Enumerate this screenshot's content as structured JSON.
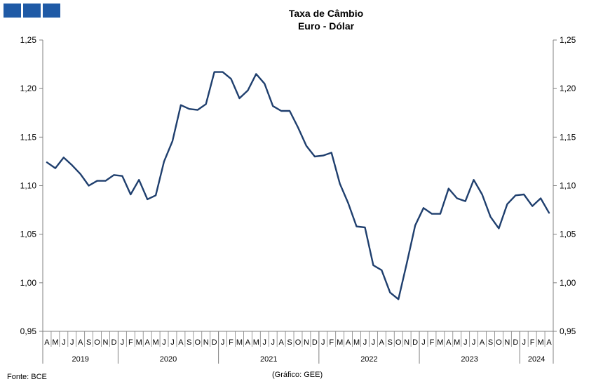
{
  "chart_data": {
    "type": "line",
    "title": "Taxa de Câmbio",
    "subtitle": "Euro - Dólar",
    "ylim": [
      0.95,
      1.25
    ],
    "y_ticks": [
      "0,95",
      "1,00",
      "1,05",
      "1,10",
      "1,15",
      "1,20",
      "1,25"
    ],
    "y_tick_values": [
      0.95,
      1.0,
      1.05,
      1.1,
      1.15,
      1.2,
      1.25
    ],
    "grid": false,
    "x": [
      "2019-04",
      "2019-05",
      "2019-06",
      "2019-07",
      "2019-08",
      "2019-09",
      "2019-10",
      "2019-11",
      "2019-12",
      "2020-01",
      "2020-02",
      "2020-03",
      "2020-04",
      "2020-05",
      "2020-06",
      "2020-07",
      "2020-08",
      "2020-09",
      "2020-10",
      "2020-11",
      "2020-12",
      "2021-01",
      "2021-02",
      "2021-03",
      "2021-04",
      "2021-05",
      "2021-06",
      "2021-07",
      "2021-08",
      "2021-09",
      "2021-10",
      "2021-11",
      "2021-12",
      "2022-01",
      "2022-02",
      "2022-03",
      "2022-04",
      "2022-05",
      "2022-06",
      "2022-07",
      "2022-08",
      "2022-09",
      "2022-10",
      "2022-11",
      "2022-12",
      "2023-01",
      "2023-02",
      "2023-03",
      "2023-04",
      "2023-05",
      "2023-06",
      "2023-07",
      "2023-08",
      "2023-09",
      "2023-10",
      "2023-11",
      "2023-12",
      "2024-01",
      "2024-02",
      "2024-03",
      "2024-04"
    ],
    "month_labels": [
      "A",
      "M",
      "J",
      "J",
      "A",
      "S",
      "O",
      "N",
      "D",
      "J",
      "F",
      "M",
      "A",
      "M",
      "J",
      "J",
      "A",
      "S",
      "O",
      "N",
      "D",
      "J",
      "F",
      "M",
      "A",
      "M",
      "J",
      "J",
      "A",
      "S",
      "O",
      "N",
      "D",
      "J",
      "F",
      "M",
      "A",
      "M",
      "J",
      "J",
      "A",
      "S",
      "O",
      "N",
      "D",
      "J",
      "F",
      "M",
      "A",
      "M",
      "J",
      "J",
      "A",
      "S",
      "O",
      "N",
      "D",
      "J",
      "F",
      "M",
      "A"
    ],
    "years": [
      {
        "label": "2019",
        "months": 9
      },
      {
        "label": "2020",
        "months": 12
      },
      {
        "label": "2021",
        "months": 12
      },
      {
        "label": "2022",
        "months": 12
      },
      {
        "label": "2023",
        "months": 12
      },
      {
        "label": "2024",
        "months": 4
      }
    ],
    "series": [
      {
        "color": "#1f3f6e",
        "values": [
          1.124,
          1.118,
          1.129,
          1.121,
          1.112,
          1.1,
          1.105,
          1.105,
          1.111,
          1.11,
          1.091,
          1.106,
          1.086,
          1.09,
          1.125,
          1.146,
          1.183,
          1.179,
          1.178,
          1.184,
          1.217,
          1.217,
          1.21,
          1.19,
          1.198,
          1.215,
          1.205,
          1.182,
          1.177,
          1.177,
          1.16,
          1.141,
          1.13,
          1.131,
          1.134,
          1.102,
          1.082,
          1.058,
          1.057,
          1.018,
          1.013,
          0.99,
          0.983,
          1.02,
          1.059,
          1.077,
          1.071,
          1.071,
          1.097,
          1.087,
          1.084,
          1.106,
          1.091,
          1.068,
          1.056,
          1.081,
          1.09,
          1.091,
          1.079,
          1.087,
          1.072
        ]
      }
    ]
  },
  "footer": {
    "source": "Fonte: BCE",
    "credit": "(Gráfico: GEE)"
  }
}
